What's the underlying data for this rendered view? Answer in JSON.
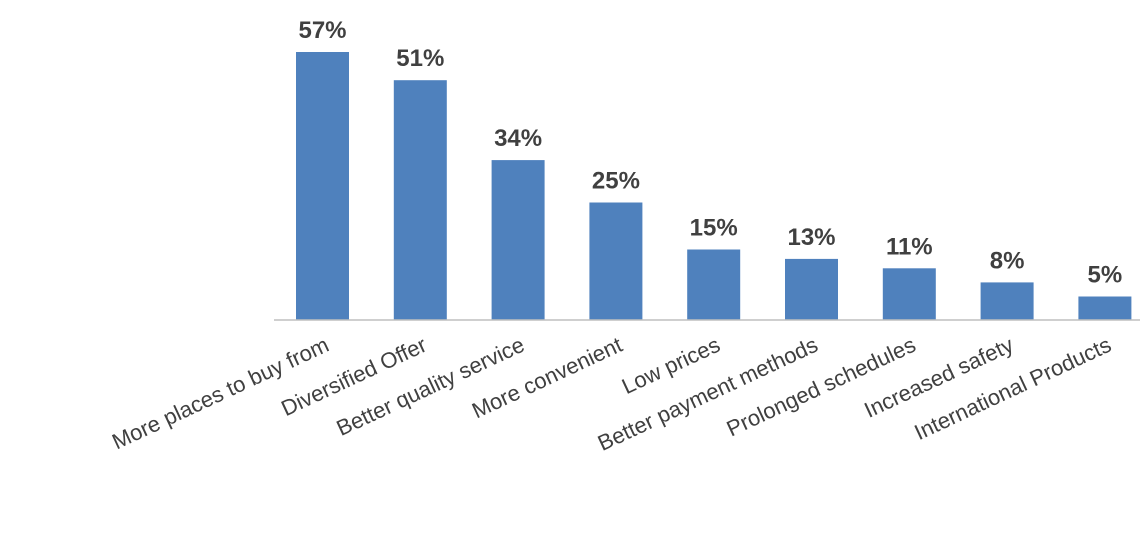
{
  "chart_data": {
    "type": "bar",
    "categories": [
      "More places to buy from",
      "Diversified Offer",
      "Better quality service",
      "More convenient",
      "Low prices",
      "Better payment methods",
      "Prolonged schedules",
      "Increased safety",
      "International Products"
    ],
    "values": [
      57,
      51,
      34,
      25,
      15,
      13,
      11,
      8,
      5
    ],
    "data_labels": [
      "57%",
      "51%",
      "34%",
      "25%",
      "15%",
      "13%",
      "11%",
      "8%",
      "5%"
    ],
    "value_unit": "%",
    "title": "",
    "xlabel": "",
    "ylabel": "",
    "ylim": [
      0,
      60
    ],
    "grid": false,
    "legend": "none",
    "bar_color": "#4f81bd",
    "label_color": "#404040",
    "axis_color": "#bfbfbf"
  }
}
